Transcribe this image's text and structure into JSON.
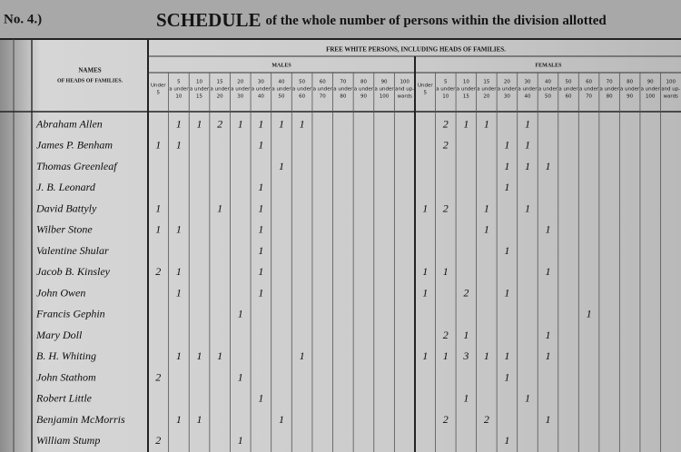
{
  "header": {
    "number": "No. 4.)",
    "title_lead": "SCHEDULE",
    "title_rest": "of the whole number of persons within the division allotted"
  },
  "table": {
    "banner": "FREE WHITE PERSONS, INCLUDING HEADS OF FAMILIES.",
    "names_header": [
      "NAMES",
      "OF HEADS OF FAMILIES."
    ],
    "groups": [
      "MALES",
      "FEMALES"
    ],
    "columns": [
      [
        "Under",
        "5"
      ],
      [
        "5",
        "a under",
        "10"
      ],
      [
        "10",
        "a under",
        "15"
      ],
      [
        "15",
        "a under",
        "20"
      ],
      [
        "20",
        "a under",
        "30"
      ],
      [
        "30",
        "a under",
        "40"
      ],
      [
        "40",
        "a under",
        "50"
      ],
      [
        "50",
        "a under",
        "60"
      ],
      [
        "60",
        "a under",
        "70"
      ],
      [
        "70",
        "a under",
        "80"
      ],
      [
        "80",
        "a under",
        "90"
      ],
      [
        "90",
        "a under",
        "100"
      ],
      [
        "100",
        "and up-",
        "wards"
      ]
    ],
    "rows": [
      {
        "name": "Abraham Allen",
        "males": [
          null,
          1,
          1,
          2,
          1,
          1,
          1,
          1,
          null,
          null,
          null,
          null,
          null
        ],
        "females": [
          null,
          2,
          1,
          1,
          null,
          1,
          null,
          null,
          null,
          null,
          null,
          null,
          null
        ]
      },
      {
        "name": "James P. Benham",
        "males": [
          1,
          1,
          null,
          null,
          null,
          1,
          null,
          null,
          null,
          null,
          null,
          null,
          null
        ],
        "females": [
          null,
          2,
          null,
          null,
          1,
          1,
          null,
          null,
          null,
          null,
          null,
          null,
          null
        ]
      },
      {
        "name": "Thomas Greenleaf",
        "males": [
          null,
          null,
          null,
          null,
          null,
          null,
          1,
          null,
          null,
          null,
          null,
          null,
          null
        ],
        "females": [
          null,
          null,
          null,
          null,
          1,
          1,
          1,
          null,
          null,
          null,
          null,
          null,
          null
        ]
      },
      {
        "name": "J. B. Leonard",
        "males": [
          null,
          null,
          null,
          null,
          null,
          1,
          null,
          null,
          null,
          null,
          null,
          null,
          null
        ],
        "females": [
          null,
          null,
          null,
          null,
          1,
          null,
          null,
          null,
          null,
          null,
          null,
          null,
          null
        ]
      },
      {
        "name": "David Battyly",
        "males": [
          1,
          null,
          null,
          1,
          null,
          1,
          null,
          null,
          null,
          null,
          null,
          null,
          null
        ],
        "females": [
          1,
          2,
          null,
          1,
          null,
          1,
          null,
          null,
          null,
          null,
          null,
          null,
          null
        ]
      },
      {
        "name": "Wilber Stone",
        "males": [
          1,
          1,
          null,
          null,
          null,
          1,
          null,
          null,
          null,
          null,
          null,
          null,
          null
        ],
        "females": [
          null,
          null,
          null,
          1,
          null,
          null,
          1,
          null,
          null,
          null,
          null,
          null,
          null
        ]
      },
      {
        "name": "Valentine Shular",
        "males": [
          null,
          null,
          null,
          null,
          null,
          1,
          null,
          null,
          null,
          null,
          null,
          null,
          null
        ],
        "females": [
          null,
          null,
          null,
          null,
          1,
          null,
          null,
          null,
          null,
          null,
          null,
          null,
          null
        ]
      },
      {
        "name": "Jacob B. Kinsley",
        "males": [
          2,
          1,
          null,
          null,
          null,
          1,
          null,
          null,
          null,
          null,
          null,
          null,
          null
        ],
        "females": [
          1,
          1,
          null,
          null,
          null,
          null,
          1,
          null,
          null,
          null,
          null,
          null,
          null
        ]
      },
      {
        "name": "John Owen",
        "males": [
          null,
          1,
          null,
          null,
          null,
          1,
          null,
          null,
          null,
          null,
          null,
          null,
          null
        ],
        "females": [
          1,
          null,
          2,
          null,
          1,
          null,
          null,
          null,
          null,
          null,
          null,
          null,
          null
        ]
      },
      {
        "name": "Francis Gephin",
        "males": [
          null,
          null,
          null,
          null,
          1,
          null,
          null,
          null,
          null,
          null,
          null,
          null,
          null
        ],
        "females": [
          null,
          null,
          null,
          null,
          null,
          null,
          null,
          null,
          1,
          null,
          null,
          null,
          null
        ]
      },
      {
        "name": "Mary Doll",
        "males": [
          null,
          null,
          null,
          null,
          null,
          null,
          null,
          null,
          null,
          null,
          null,
          null,
          null
        ],
        "females": [
          null,
          2,
          1,
          null,
          null,
          null,
          1,
          null,
          null,
          null,
          null,
          null,
          null
        ]
      },
      {
        "name": "B. H. Whiting",
        "males": [
          null,
          1,
          1,
          1,
          null,
          null,
          null,
          1,
          null,
          null,
          null,
          null,
          null
        ],
        "females": [
          1,
          1,
          3,
          1,
          1,
          null,
          1,
          null,
          null,
          null,
          null,
          null,
          null
        ]
      },
      {
        "name": "John Stathom",
        "males": [
          2,
          null,
          null,
          null,
          1,
          null,
          null,
          null,
          null,
          null,
          null,
          null,
          null
        ],
        "females": [
          null,
          null,
          null,
          null,
          1,
          null,
          null,
          null,
          null,
          null,
          null,
          null,
          null
        ]
      },
      {
        "name": "Robert Little",
        "males": [
          null,
          null,
          null,
          null,
          null,
          1,
          null,
          null,
          null,
          null,
          null,
          null,
          null
        ],
        "females": [
          null,
          null,
          1,
          null,
          null,
          1,
          null,
          null,
          null,
          null,
          null,
          null,
          null
        ]
      },
      {
        "name": "Benjamin McMorris",
        "males": [
          null,
          1,
          1,
          null,
          null,
          null,
          1,
          null,
          null,
          null,
          null,
          null,
          null
        ],
        "females": [
          null,
          2,
          null,
          2,
          null,
          null,
          1,
          null,
          null,
          null,
          null,
          null,
          null
        ]
      },
      {
        "name": "William Stump",
        "males": [
          2,
          null,
          null,
          null,
          1,
          null,
          null,
          null,
          null,
          null,
          null,
          null,
          null
        ],
        "females": [
          null,
          null,
          null,
          null,
          1,
          null,
          null,
          null,
          null,
          null,
          null,
          null,
          null
        ]
      }
    ]
  }
}
